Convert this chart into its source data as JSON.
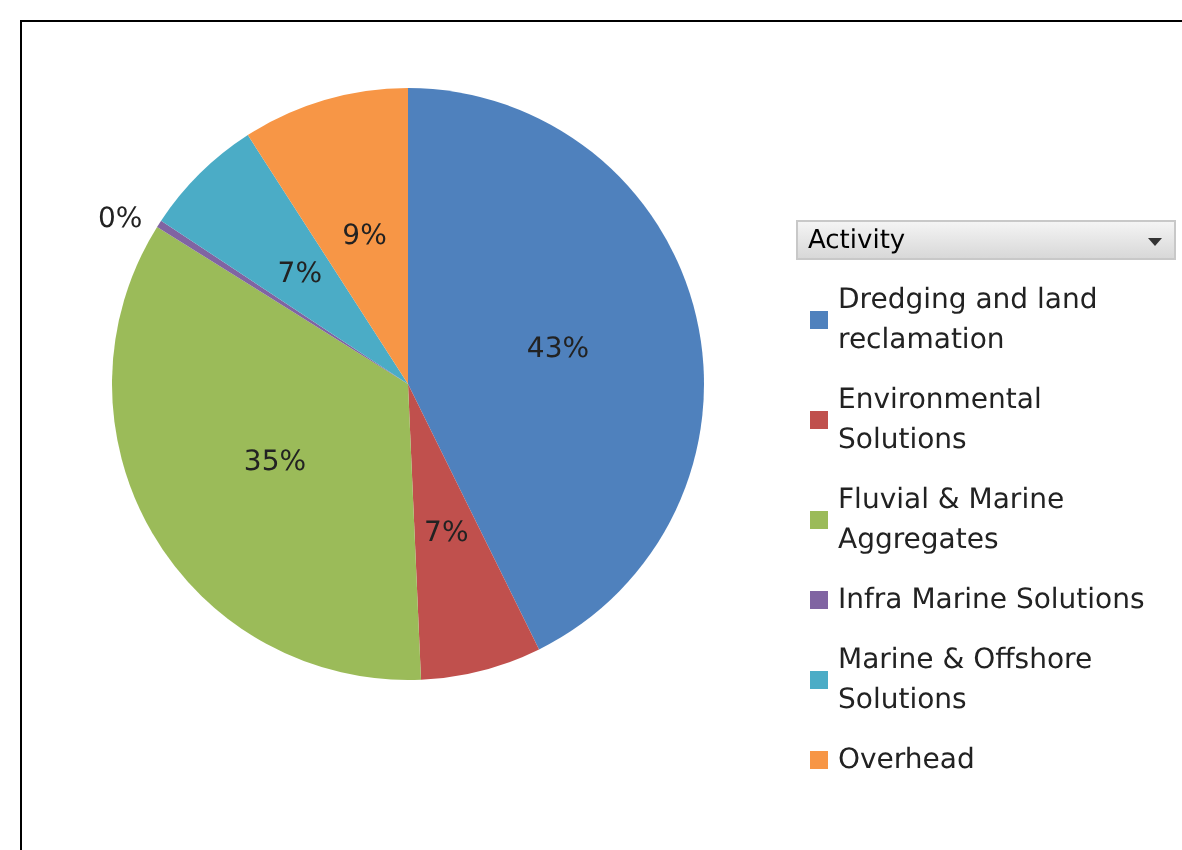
{
  "chart_data": {
    "type": "pie",
    "legend_title": "Activity",
    "legend": "right",
    "categories": [
      "Dredging and land reclamation",
      "Environmental Solutions",
      "Fluvial & Marine Aggregates",
      "Infra Marine Solutions",
      "Marine & Offshore Solutions",
      "Overhead"
    ],
    "values": [
      42.7,
      6.6,
      34.6,
      0.4,
      6.6,
      9.1
    ],
    "value_labels": [
      "43%",
      "7%",
      "35%",
      "0%",
      "7%",
      "9%"
    ],
    "colors": [
      "#4f81bd",
      "#c0504d",
      "#9bbb59",
      "#8064a2",
      "#4bacc6",
      "#f79646"
    ]
  }
}
